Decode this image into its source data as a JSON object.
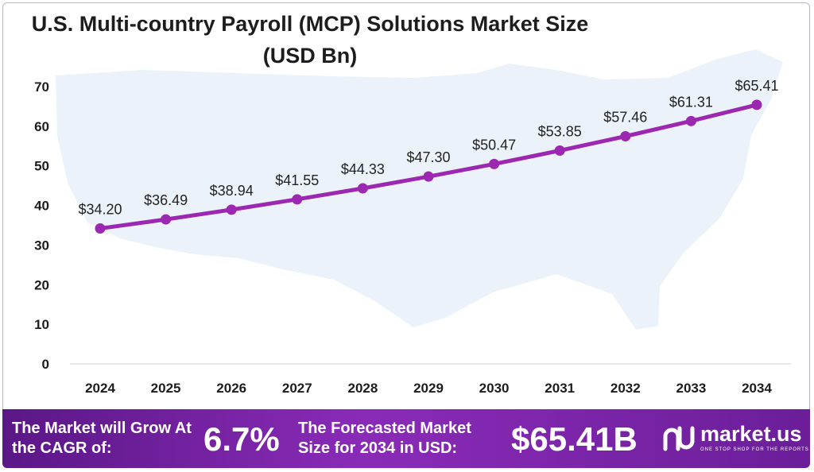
{
  "chart_data": {
    "type": "line",
    "title": "U.S. Multi-country Payroll (MCP) Solutions Market Size (USD Bn)",
    "x": [
      "2024",
      "2025",
      "2026",
      "2027",
      "2028",
      "2029",
      "2030",
      "2031",
      "2032",
      "2033",
      "2034"
    ],
    "series": [
      {
        "values": [
          34.2,
          36.49,
          38.94,
          41.55,
          44.33,
          47.3,
          50.47,
          53.85,
          57.46,
          61.31,
          65.41
        ]
      }
    ],
    "data_labels": [
      "$34.20",
      "$36.49",
      "$38.94",
      "$41.55",
      "$44.33",
      "$47.30",
      "$50.47",
      "$53.85",
      "$57.46",
      "$61.31",
      "$65.41"
    ],
    "y_ticks": [
      0,
      10,
      20,
      30,
      40,
      50,
      60,
      70
    ],
    "ylim": [
      0,
      70
    ],
    "grid": false,
    "colors": {
      "line": "#9c27b0",
      "point": "#9c27b0"
    }
  },
  "footer": {
    "cagr_label": "The Market will Grow At the CAGR of:",
    "cagr_value": "6.7%",
    "forecast_label": "The Forecasted Market Size for 2034 in USD:",
    "forecast_value": "$65.41B",
    "brand": "market.us",
    "tagline": "ONE STOP SHOP FOR THE REPORTS",
    "colors": {
      "band_start": "#5a1786",
      "band_end": "#6b1e99"
    }
  }
}
